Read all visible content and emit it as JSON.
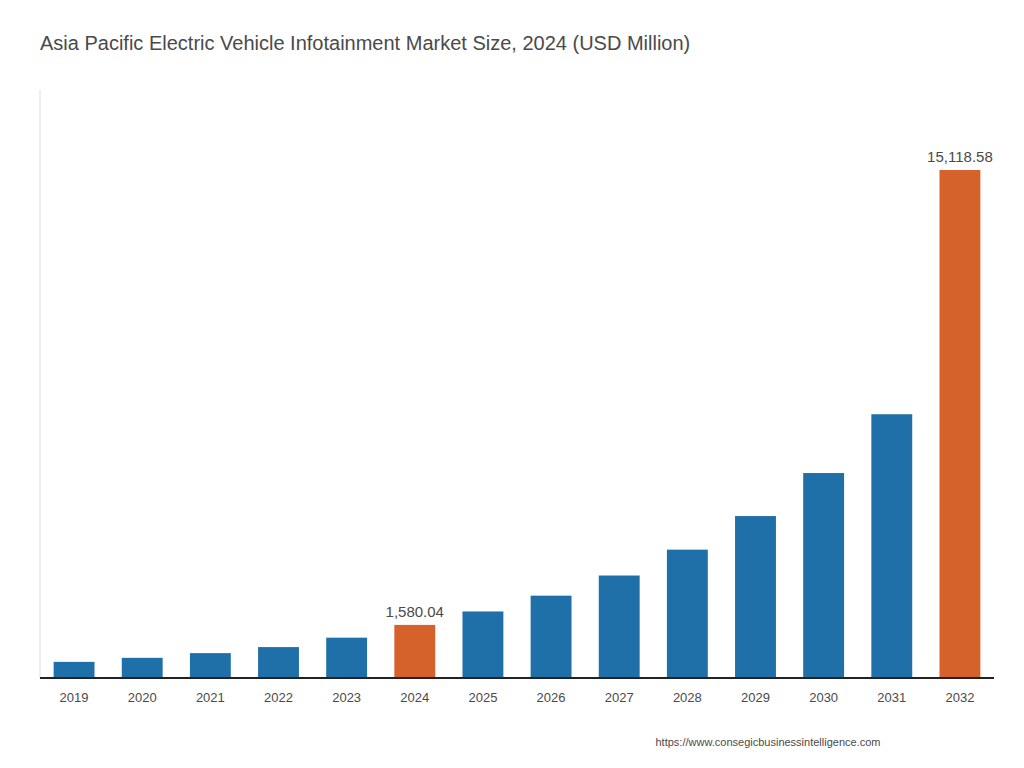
{
  "chart_data": {
    "type": "bar",
    "title": "Asia Pacific Electric Vehicle Infotainment Market Size, 2024 (USD Million)",
    "categories": [
      "2019",
      "2020",
      "2021",
      "2022",
      "2023",
      "2024",
      "2025",
      "2026",
      "2027",
      "2028",
      "2029",
      "2030",
      "2031",
      "2032"
    ],
    "values": [
      480,
      600,
      740,
      920,
      1200,
      1580.04,
      1980,
      2450,
      3050,
      3820,
      4820,
      6100,
      7850,
      15118.58
    ],
    "value_labels": [
      null,
      null,
      null,
      null,
      null,
      "1,580.04",
      null,
      null,
      null,
      null,
      null,
      null,
      null,
      "15,118.58"
    ],
    "data_labels": true,
    "colors": [
      "#1F6FA8",
      "#1F6FA8",
      "#1F6FA8",
      "#1F6FA8",
      "#1F6FA8",
      "#D4622A",
      "#1F6FA8",
      "#1F6FA8",
      "#1F6FA8",
      "#1F6FA8",
      "#1F6FA8",
      "#1F6FA8",
      "#1F6FA8",
      "#D4622A"
    ],
    "ylim": [
      0,
      17500
    ],
    "grid": false,
    "tick_labels": "x",
    "annotations": [
      {
        "text": "https://www.consegicbusinessintelligence.com"
      }
    ]
  }
}
